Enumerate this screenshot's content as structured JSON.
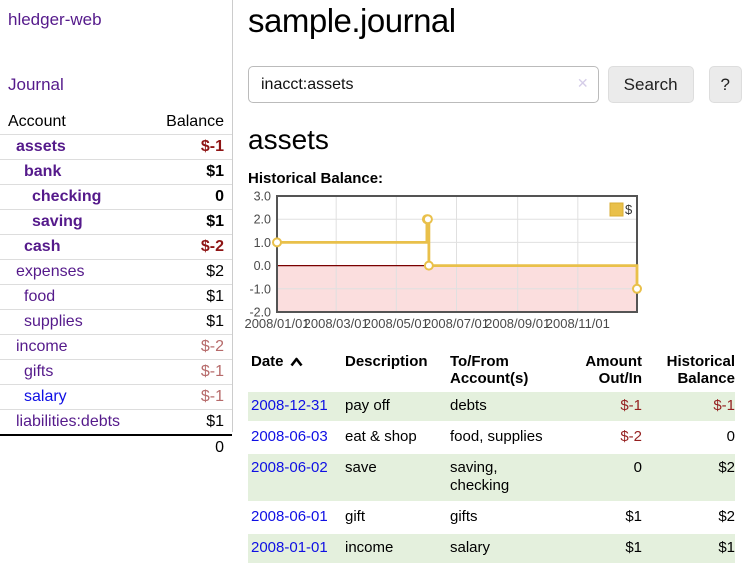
{
  "sidebar": {
    "title": "hledger-web",
    "journal_label": "Journal",
    "accounts_header": {
      "account": "Account",
      "balance": "Balance"
    },
    "accounts": [
      {
        "name": "assets",
        "depth": 0,
        "bold": true,
        "balance": "$-1",
        "neg": "strong"
      },
      {
        "name": "bank",
        "depth": 1,
        "bold": true,
        "balance": "$1"
      },
      {
        "name": "checking",
        "depth": 2,
        "bold": true,
        "balance": "0"
      },
      {
        "name": "saving",
        "depth": 2,
        "bold": true,
        "balance": "$1"
      },
      {
        "name": "cash",
        "depth": 1,
        "bold": true,
        "balance": "$-2",
        "neg": "strong"
      },
      {
        "name": "expenses",
        "depth": 0,
        "bold": false,
        "balance": "$2"
      },
      {
        "name": "food",
        "depth": 1,
        "bold": false,
        "balance": "$1"
      },
      {
        "name": "supplies",
        "depth": 1,
        "bold": false,
        "balance": "$1"
      },
      {
        "name": "income",
        "depth": 0,
        "bold": false,
        "balance": "$-2",
        "neg": "muted"
      },
      {
        "name": "gifts",
        "depth": 1,
        "bold": false,
        "balance": "$-1",
        "neg": "muted"
      },
      {
        "name": "salary",
        "depth": 1,
        "bold": false,
        "balance": "$-1",
        "neg": "muted",
        "unvisited": true
      },
      {
        "name": "liabilities:debts",
        "depth": 0,
        "bold": false,
        "balance": "$1"
      }
    ],
    "total": "0"
  },
  "main": {
    "title": "sample.journal",
    "search": {
      "value": "inacct:assets",
      "clear_icon": "✕",
      "button_label": "Search",
      "help_label": "?"
    },
    "account_heading": "assets",
    "register": {
      "columns": [
        {
          "lines": [
            "Date"
          ],
          "sort": "asc"
        },
        {
          "lines": [
            "Description"
          ]
        },
        {
          "lines": [
            "To/From",
            "Account(s)"
          ]
        },
        {
          "lines": [
            "Amount",
            "Out/In"
          ],
          "align": "right"
        },
        {
          "lines": [
            "Historical",
            "Balance"
          ],
          "align": "right"
        }
      ],
      "rows": [
        {
          "date": "2008-12-31",
          "description": "pay off",
          "accounts": [
            "debts"
          ],
          "amount": {
            "text": "$-1",
            "neg": true
          },
          "balance": {
            "text": "$-1",
            "neg": true
          }
        },
        {
          "date": "2008-06-03",
          "description": "eat & shop",
          "accounts": [
            "food, supplies"
          ],
          "amount": {
            "text": "$-2",
            "neg": true
          },
          "balance": {
            "text": "0",
            "neg": false
          }
        },
        {
          "date": "2008-06-02",
          "description": "save",
          "accounts": [
            "saving,",
            "checking"
          ],
          "amount": {
            "text": "0",
            "neg": false
          },
          "balance": {
            "text": "$2",
            "neg": false
          }
        },
        {
          "date": "2008-06-01",
          "description": "gift",
          "accounts": [
            "gifts"
          ],
          "amount": {
            "text": "$1",
            "neg": false
          },
          "balance": {
            "text": "$2",
            "neg": false
          }
        },
        {
          "date": "2008-01-01",
          "description": "income",
          "accounts": [
            "salary"
          ],
          "amount": {
            "text": "$1",
            "neg": false
          },
          "balance": {
            "text": "$1",
            "neg": false
          }
        }
      ]
    }
  },
  "chart_data": {
    "type": "line",
    "title": "Historical Balance:",
    "step": true,
    "x_span_days": 365,
    "x_start": "2008/01/01",
    "ylim": [
      -2,
      3
    ],
    "ytick_labels": [
      "3.0",
      "2.0",
      "1.0",
      "0.0",
      "-1.0",
      "-2.0"
    ],
    "xticks": [
      "2008/01/01",
      "2008/03/01",
      "2008/05/01",
      "2008/07/01",
      "2008/09/01",
      "2008/11/01"
    ],
    "series": [
      {
        "name": "$",
        "color": "#e9c04a",
        "points": [
          [
            "2008/01/01",
            1
          ],
          [
            "2008/06/01",
            2
          ],
          [
            "2008/06/02",
            2
          ],
          [
            "2008/06/03",
            0
          ],
          [
            "2008/12/31",
            -1
          ]
        ]
      }
    ],
    "legend_label": "$",
    "legend_position": "top-right",
    "grid": true,
    "colors": {
      "negative_region": "#fbdede",
      "zero_line": "#7a0000",
      "grid": "#e0e0e0",
      "border": "#545454",
      "tick_text": "#4a4a4a",
      "legend_text": "#333333"
    }
  },
  "colors": {
    "link_visited": "#551a8b",
    "link_unvisited": "#0f0fe4",
    "negative_strong": "#8e1414",
    "negative_muted": "#b66a6a",
    "table_negative": "#941f1f",
    "row_stripe": "#e4f0dd",
    "accent_gold": "#e9c04a",
    "clear_icon": "#d5cde8"
  }
}
